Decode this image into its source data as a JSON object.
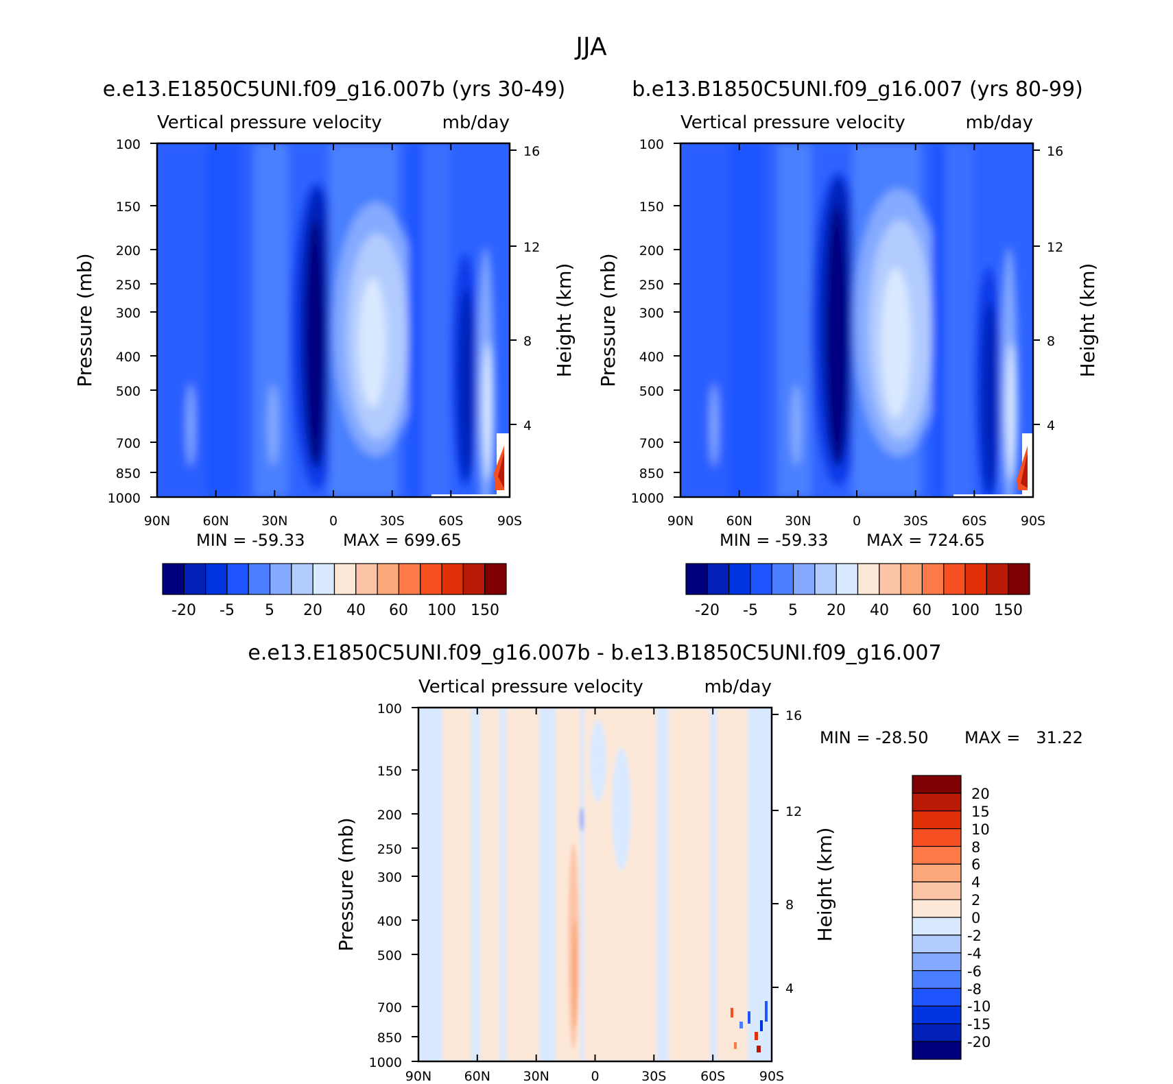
{
  "page_title": "JJA",
  "panel_titles": {
    "top_left": "e.e13.E1850C5UNI.f09_g16.007b (yrs 30-49)",
    "top_right": "b.e13.B1850C5UNI.f09_g16.007 (yrs 80-99)",
    "bottom": "e.e13.E1850C5UNI.f09_g16.007b - b.e13.B1850C5UNI.f09_g16.007"
  },
  "chart_data": [
    {
      "type": "heatmap",
      "title": "Vertical pressure velocity",
      "units": "mb/day",
      "xlabel": "",
      "ylabel": "Pressure (mb)",
      "ylabel_right": "Height (km)",
      "x_ticks": [
        "90N",
        "60N",
        "30N",
        "0",
        "30S",
        "60S",
        "90S"
      ],
      "y_ticks": [
        100,
        150,
        200,
        250,
        300,
        400,
        500,
        700,
        850,
        1000
      ],
      "y_ticks_right": [
        16,
        12,
        8,
        4
      ],
      "ylim": [
        1000,
        100
      ],
      "y_scale": "log",
      "min_label": "MIN = -59.33",
      "max_label": "MAX = 699.65",
      "colorbar": {
        "orientation": "horizontal",
        "labels": [
          "-20",
          "-5",
          "5",
          "20",
          "40",
          "60",
          "100",
          "150"
        ],
        "colors": [
          "#00007f",
          "#0020b8",
          "#0034e0",
          "#1f55ff",
          "#4a80ff",
          "#85aaff",
          "#b3ccff",
          "#d9e9ff",
          "#fde8d8",
          "#fcc4a6",
          "#fba77a",
          "#fb7a48",
          "#f64f22",
          "#e03008",
          "#b81a06",
          "#7f0000"
        ]
      }
    },
    {
      "type": "heatmap",
      "title": "Vertical pressure velocity",
      "units": "mb/day",
      "xlabel": "",
      "ylabel": "Pressure (mb)",
      "ylabel_right": "Height (km)",
      "x_ticks": [
        "90N",
        "60N",
        "30N",
        "0",
        "30S",
        "60S",
        "90S"
      ],
      "y_ticks": [
        100,
        150,
        200,
        250,
        300,
        400,
        500,
        700,
        850,
        1000
      ],
      "y_ticks_right": [
        16,
        12,
        8,
        4
      ],
      "ylim": [
        1000,
        100
      ],
      "y_scale": "log",
      "min_label": "MIN = -59.33",
      "max_label": "MAX = 724.65",
      "colorbar": {
        "orientation": "horizontal",
        "labels": [
          "-20",
          "-5",
          "5",
          "20",
          "40",
          "60",
          "100",
          "150"
        ],
        "colors": [
          "#00007f",
          "#0020b8",
          "#0034e0",
          "#1f55ff",
          "#4a80ff",
          "#85aaff",
          "#b3ccff",
          "#d9e9ff",
          "#fde8d8",
          "#fcc4a6",
          "#fba77a",
          "#fb7a48",
          "#f64f22",
          "#e03008",
          "#b81a06",
          "#7f0000"
        ]
      }
    },
    {
      "type": "heatmap",
      "title": "Vertical pressure velocity",
      "units": "mb/day",
      "xlabel": "",
      "ylabel": "Pressure (mb)",
      "ylabel_right": "Height (km)",
      "x_ticks": [
        "90N",
        "60N",
        "30N",
        "0",
        "30S",
        "60S",
        "90S"
      ],
      "y_ticks": [
        100,
        150,
        200,
        250,
        300,
        400,
        500,
        700,
        850,
        1000
      ],
      "y_ticks_right": [
        16,
        12,
        8,
        4
      ],
      "ylim": [
        1000,
        100
      ],
      "y_scale": "log",
      "min_label": "MIN = -28.50",
      "max_label": "MAX =   31.22",
      "colorbar": {
        "orientation": "vertical",
        "labels": [
          "20",
          "15",
          "10",
          "8",
          "6",
          "4",
          "2",
          "0",
          "-2",
          "-4",
          "-6",
          "-8",
          "-10",
          "-15",
          "-20"
        ],
        "colors": [
          "#7f0000",
          "#b81a06",
          "#e03008",
          "#f64f22",
          "#fb7a48",
          "#fba77a",
          "#fcc4a6",
          "#fde8d8",
          "#d9e9ff",
          "#b3ccff",
          "#85aaff",
          "#4a80ff",
          "#1f55ff",
          "#0034e0",
          "#0020b8",
          "#00007f"
        ]
      }
    }
  ]
}
